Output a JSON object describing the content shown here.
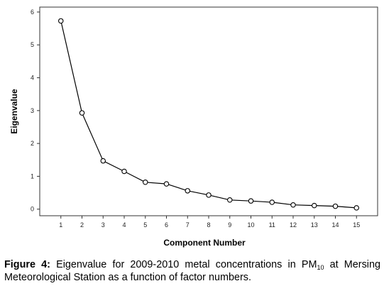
{
  "chart_data": {
    "type": "line",
    "title": "",
    "xlabel": "Component Number",
    "ylabel": "Eigenvalue",
    "x": [
      1,
      2,
      3,
      4,
      5,
      6,
      7,
      8,
      9,
      10,
      11,
      12,
      13,
      14,
      15
    ],
    "values": [
      5.73,
      2.93,
      1.47,
      1.15,
      0.82,
      0.77,
      0.56,
      0.43,
      0.28,
      0.25,
      0.21,
      0.13,
      0.11,
      0.09,
      0.04
    ],
    "xticks": [
      "1",
      "2",
      "3",
      "4",
      "5",
      "6",
      "7",
      "8",
      "9",
      "10",
      "11",
      "12",
      "13",
      "14",
      "15"
    ],
    "yticks": [
      "0",
      "1",
      "2",
      "3",
      "4",
      "5",
      "6"
    ],
    "ylim": [
      -0.2,
      6.15
    ],
    "xlim": [
      0,
      16
    ],
    "grid": false,
    "marker": "open-circle",
    "line_color": "#000000"
  },
  "caption": {
    "label": "Figure 4:",
    "text_before_sub": " Eigenvalue for 2009-2010 metal concentrations in PM",
    "subscript": "10",
    "text_after_sub": " at Mersing Meteorological Station as a function of factor numbers."
  }
}
